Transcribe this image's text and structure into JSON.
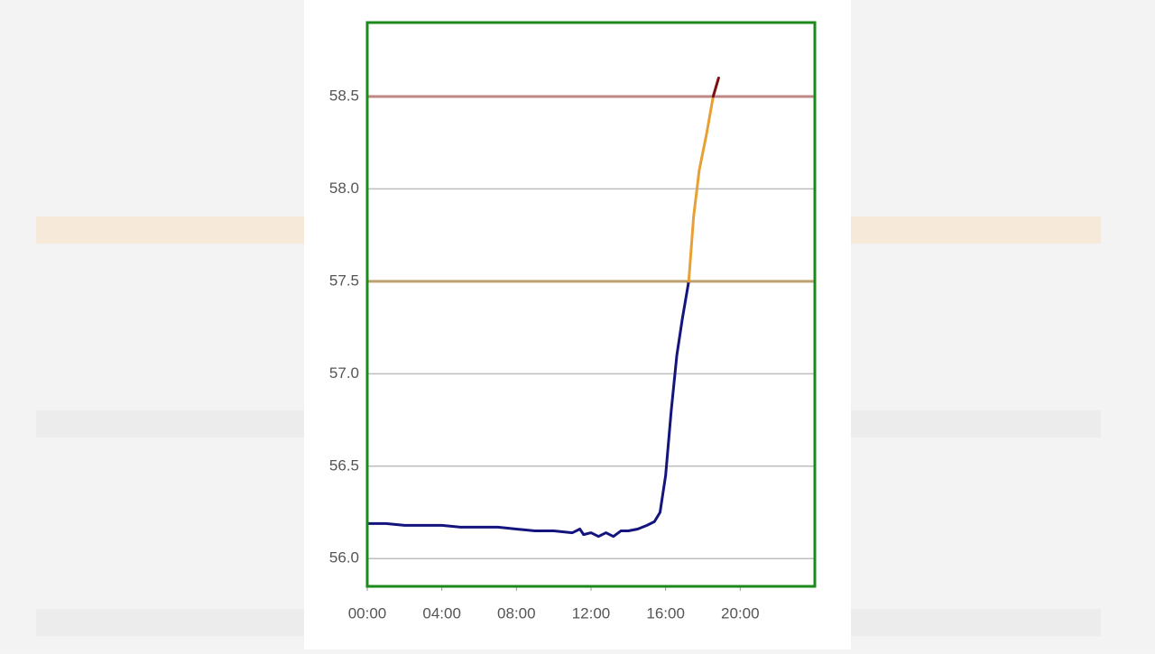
{
  "chart_data": {
    "type": "line",
    "xlim": [
      0,
      24
    ],
    "xticks": [
      {
        "value": 0,
        "label": "00:00"
      },
      {
        "value": 4,
        "label": "04:00"
      },
      {
        "value": 8,
        "label": "08:00"
      },
      {
        "value": 12,
        "label": "12:00"
      },
      {
        "value": 16,
        "label": "16:00"
      },
      {
        "value": 20,
        "label": "20:00"
      }
    ],
    "ylim": [
      55.85,
      58.9
    ],
    "yticks": [
      {
        "value": 56,
        "label": "56.0"
      },
      56.5,
      {
        "value": 57,
        "label": "57.0"
      },
      57.5,
      {
        "value": 58,
        "label": "58.0"
      },
      58.5
    ],
    "grid": true,
    "reference_lines": [
      {
        "value": 57.5,
        "color": "#bca070"
      },
      {
        "value": 58.5,
        "color": "#c08585"
      }
    ],
    "series": [
      {
        "color": "#14147e",
        "x": [
          0,
          1,
          2,
          3,
          4,
          5,
          6,
          7,
          8,
          9,
          10,
          11,
          11.4,
          11.6,
          12,
          12.4,
          12.8,
          13.2,
          13.6,
          14,
          14.5,
          15,
          15.4,
          15.7,
          16,
          16.3,
          16.6,
          16.9,
          17.24
        ],
        "values": [
          56.19,
          56.19,
          56.18,
          56.18,
          56.18,
          56.17,
          56.17,
          56.17,
          56.16,
          56.15,
          56.15,
          56.14,
          56.16,
          56.13,
          56.14,
          56.12,
          56.14,
          56.12,
          56.15,
          56.15,
          56.16,
          56.18,
          56.2,
          56.25,
          56.45,
          56.8,
          57.1,
          57.3,
          57.5
        ]
      },
      {
        "color": "#e8a035",
        "x": [
          17.24,
          17.5,
          17.8,
          18.2,
          18.55
        ],
        "values": [
          57.5,
          57.85,
          58.1,
          58.3,
          58.5
        ]
      },
      {
        "color": "#7a1212",
        "x": [
          18.55,
          18.84
        ],
        "values": [
          58.5,
          58.6
        ]
      }
    ]
  }
}
